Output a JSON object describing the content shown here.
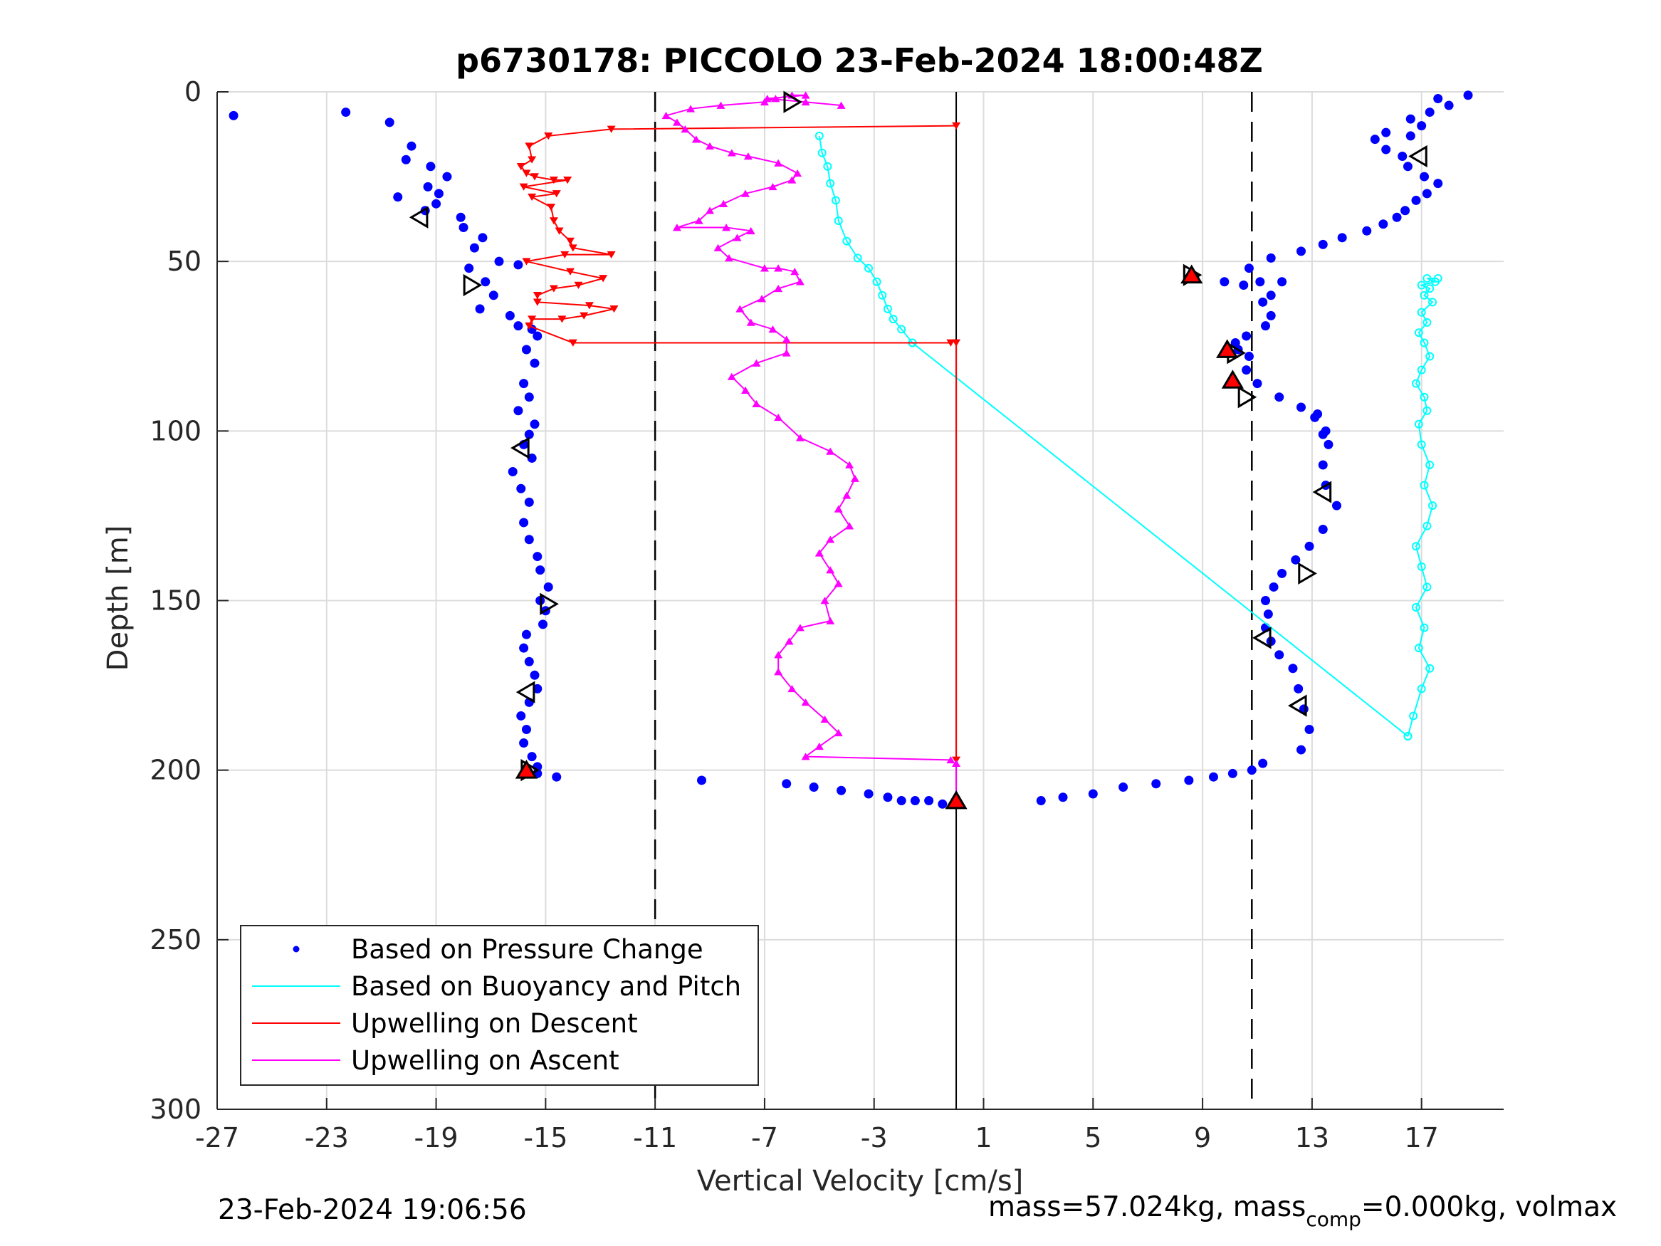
{
  "title": "p6730178: PICCOLO 23-Feb-2024 18:00:48Z",
  "footer": {
    "timestamp": "23-Feb-2024 19:06:56",
    "mass_text": "mass=57.024kg, mass",
    "mass_sub": "comp",
    "mass_tail": "=0.000kg, volmax"
  },
  "colors": {
    "pressure": "#0000ff",
    "buoyancy": "#00ffff",
    "descent": "#ff0000",
    "ascent": "#ff00ff",
    "dashed": "#000000"
  },
  "chart_data": {
    "type": "scatter",
    "title": "p6730178: PICCOLO 23-Feb-2024 18:00:48Z",
    "xlabel": "Vertical Velocity [cm/s]",
    "ylabel": "Depth [m]",
    "xlim": [
      -27,
      20
    ],
    "ylim": [
      0,
      300
    ],
    "y_reversed": true,
    "grid": true,
    "xticks": [
      -27,
      -23,
      -19,
      -15,
      -11,
      -7,
      -3,
      1,
      5,
      9,
      13,
      17
    ],
    "xtick_labels": [
      "-27",
      "-23",
      "-19",
      "-15",
      "-11",
      "-7",
      "-3",
      "1",
      "5",
      "9",
      "13",
      "17"
    ],
    "yticks": [
      0,
      50,
      100,
      150,
      200,
      250,
      300
    ],
    "ytick_labels": [
      "0",
      "50",
      "100",
      "150",
      "200",
      "250",
      "300"
    ],
    "legend_position": "bottom-left",
    "legend": [
      "Based on Pressure Change",
      "Based on Buoyancy and Pitch",
      "Upwelling on Descent",
      "Upwelling on Ascent"
    ],
    "reference_lines": {
      "dashed_x": [
        -11.0,
        10.8
      ],
      "solid_x": 0.0
    },
    "series": [
      {
        "name": "Based on Pressure Change",
        "style": "dots",
        "segments": [
          {
            "x": [
              -26.4,
              -22.3,
              -20.7,
              -19.9,
              -20.1,
              -19.2,
              -18.6,
              -19.3,
              -18.9,
              -19.0,
              -20.4,
              -19.4,
              -18.1,
              -18.0,
              -17.3,
              -17.6,
              -16.7,
              -16.0,
              -17.8,
              -17.2,
              -16.9,
              -17.4,
              -16.3,
              -16.0,
              -15.5,
              -15.3,
              -15.7,
              -15.4,
              -15.8,
              -15.6,
              -16.0,
              -15.4,
              -15.6,
              -15.8,
              -15.5,
              -16.2,
              -15.9,
              -15.6,
              -15.8,
              -15.6,
              -15.3,
              -15.2,
              -14.9,
              -15.2,
              -15.0,
              -15.1,
              -15.7,
              -15.8,
              -15.6,
              -15.4,
              -15.3,
              -15.6,
              -15.9,
              -15.7,
              -15.8,
              -15.5,
              -15.3,
              -15.3,
              -14.6
            ],
            "y": [
              7,
              6,
              9,
              16,
              20,
              22,
              25,
              28,
              30,
              33,
              31,
              35,
              37,
              40,
              43,
              46,
              50,
              51,
              52,
              56,
              60,
              64,
              66,
              69,
              70,
              72,
              76,
              80,
              86,
              90,
              94,
              98,
              101,
              104,
              108,
              112,
              117,
              121,
              127,
              132,
              137,
              141,
              146,
              150,
              153,
              157,
              160,
              164,
              168,
              172,
              176,
              180,
              184,
              188,
              192,
              196,
              199,
              201,
              202
            ]
          },
          {
            "x": [
              -9.3,
              -6.2,
              -5.2,
              -4.2,
              -3.2,
              -2.5,
              -2.0,
              -1.5,
              -1.0,
              -0.5,
              0.0
            ],
            "y": [
              203,
              204,
              205,
              206,
              207,
              208,
              209,
              209,
              209,
              210,
              210
            ]
          },
          {
            "x": [
              3.1,
              3.9,
              5.0,
              6.1,
              7.3,
              8.5,
              9.4,
              10.1,
              10.8,
              11.2
            ],
            "y": [
              209,
              208,
              207,
              205,
              204,
              203,
              202,
              201,
              200,
              198
            ]
          },
          {
            "x": [
              12.6,
              12.9,
              12.7,
              12.5,
              12.3,
              11.8,
              11.5,
              11.3,
              11.4,
              11.3,
              11.6,
              11.9,
              12.4,
              12.9,
              13.4,
              13.9,
              13.5,
              13.4,
              13.6,
              13.5,
              13.1,
              13.4,
              13.2,
              12.6,
              11.8,
              11.0,
              10.6,
              10.7,
              10.3,
              10.2,
              10.6,
              11.3,
              11.5,
              11.2,
              11.5,
              11.9,
              11.1,
              10.5,
              9.8,
              8.6,
              10.7,
              11.5,
              12.6,
              13.4,
              14.1,
              15.0,
              15.6,
              16.1,
              16.4,
              16.8,
              17.2,
              17.6,
              17.1,
              16.5,
              16.3,
              15.7,
              15.3,
              15.7,
              16.6,
              17.0,
              16.6,
              17.3,
              18.0,
              17.6,
              18.7
            ],
            "y": [
              194,
              188,
              182,
              176,
              170,
              166,
              162,
              158,
              154,
              150,
              146,
              142,
              138,
              134,
              129,
              122,
              116,
              110,
              104,
              100,
              96,
              101,
              95,
              93,
              90,
              86,
              82,
              78,
              76,
              74,
              72,
              69,
              66,
              62,
              60,
              56,
              56,
              57,
              56,
              55,
              52,
              49,
              47,
              45,
              43,
              41,
              39,
              37,
              35,
              32,
              30,
              27,
              25,
              22,
              19,
              17,
              14,
              12,
              13,
              10,
              8,
              6,
              4,
              2,
              1
            ]
          }
        ]
      },
      {
        "name": "Based on Buoyancy and Pitch",
        "style": "line-dots",
        "segments": [
          {
            "x": [
              -5.0,
              -4.9,
              -4.7,
              -4.6,
              -4.4,
              -4.3,
              -4.0,
              -3.6,
              -3.2,
              -2.9,
              -2.7,
              -2.5,
              -2.3,
              -2.0,
              -1.6
            ],
            "y": [
              13,
              18,
              22,
              27,
              32,
              38,
              44,
              49,
              52,
              56,
              60,
              64,
              67,
              70,
              74
            ]
          },
          {
            "x": [
              -1.6,
              16.5
            ],
            "y": [
              74,
              190
            ]
          },
          {
            "x": [
              16.5,
              16.7,
              17.0,
              17.3,
              16.9,
              17.1,
              16.8,
              17.2,
              17.0,
              16.8,
              17.2,
              17.4,
              17.1,
              17.3,
              17.0,
              16.9,
              17.2,
              17.1,
              16.8,
              17.0,
              17.3,
              17.1,
              16.9,
              17.2,
              17.0,
              17.4,
              17.1,
              17.3,
              17.0,
              17.5,
              17.2,
              17.6
            ],
            "y": [
              190,
              184,
              176,
              170,
              164,
              158,
              152,
              146,
              140,
              134,
              128,
              122,
              116,
              110,
              104,
              98,
              94,
              90,
              86,
              82,
              78,
              74,
              71,
              68,
              65,
              62,
              60,
              58,
              57,
              56,
              55,
              55
            ]
          }
        ]
      },
      {
        "name": "Upwelling on Descent",
        "style": "line-down-triangles",
        "segments": [
          {
            "x": [
              0.0,
              -12.6,
              -14.9,
              -15.6,
              -15.5,
              -15.9,
              -15.7,
              -15.4,
              -14.7,
              -14.2,
              -15.8,
              -14.6,
              -15.5,
              -14.8,
              -14.7,
              -14.5,
              -14.1,
              -14.0,
              -12.6,
              -14.3,
              -15.7,
              -14.1,
              -12.9,
              -13.8,
              -14.7,
              -15.3,
              -15.3,
              -13.4,
              -12.5,
              -13.6,
              -14.4,
              -15.5,
              -15.6,
              -14.0,
              -0.2
            ],
            "y": [
              10,
              11,
              13,
              16,
              20,
              22,
              24,
              25,
              26,
              26,
              28,
              30,
              31,
              34,
              38,
              41,
              44,
              46,
              48,
              48,
              50,
              53,
              55,
              57,
              58,
              60,
              62,
              63,
              64,
              66,
              67,
              67,
              69,
              74,
              74
            ]
          },
          {
            "x": [
              0.0,
              0.0
            ],
            "y": [
              74,
              197
            ]
          }
        ]
      },
      {
        "name": "Upwelling on Ascent",
        "style": "line-up-triangles",
        "segments": [
          {
            "x": [
              -0.2,
              -5.5,
              -5.0,
              -4.3,
              -4.8,
              -5.5,
              -6.0,
              -6.5,
              -6.5,
              -6.1,
              -5.7,
              -4.6,
              -4.8,
              -4.3,
              -4.6,
              -5.0,
              -4.6,
              -3.9,
              -4.3,
              -4.0,
              -3.7,
              -3.9,
              -4.6,
              -5.7,
              -6.5,
              -7.3,
              -7.7,
              -8.2,
              -7.3,
              -6.2,
              -6.2,
              -6.7,
              -7.5,
              -7.9,
              -7.1,
              -6.5,
              -5.7,
              -5.9,
              -6.5,
              -7.0,
              -8.3,
              -8.7,
              -8.0,
              -7.5,
              -8.4,
              -10.2,
              -9.4,
              -9.0,
              -8.5,
              -7.7,
              -6.7,
              -6.0,
              -5.8,
              -6.5,
              -7.6,
              -8.2,
              -9.0,
              -9.5,
              -9.9,
              -10.2,
              -10.6,
              -9.7,
              -8.6,
              -7.0,
              -6.6,
              -6.0,
              -5.5,
              -6.9,
              -5.5,
              -4.2
            ],
            "y": [
              197,
              196,
              193,
              189,
              185,
              180,
              176,
              171,
              166,
              162,
              158,
              156,
              150,
              145,
              141,
              136,
              132,
              128,
              123,
              119,
              114,
              110,
              106,
              102,
              96,
              92,
              88,
              84,
              80,
              77,
              73,
              70,
              68,
              64,
              61,
              58,
              56,
              53,
              52,
              52,
              49,
              46,
              43,
              41,
              40,
              40,
              38,
              35,
              33,
              30,
              28,
              26,
              24,
              21,
              19,
              18,
              16,
              14,
              11,
              9,
              7,
              5,
              4,
              3,
              2,
              1,
              1,
              2,
              3,
              4
            ]
          },
          {
            "x": [
              0.0,
              0.0
            ],
            "y": [
              198,
              209
            ]
          }
        ]
      }
    ],
    "markers": [
      {
        "shape": "tri-right",
        "x": -6.0,
        "y": 3,
        "filled": false
      },
      {
        "shape": "tri-left",
        "x": -19.6,
        "y": 37,
        "filled": false
      },
      {
        "shape": "tri-right",
        "x": -17.7,
        "y": 57,
        "filled": false
      },
      {
        "shape": "tri-left",
        "x": -15.9,
        "y": 105,
        "filled": false
      },
      {
        "shape": "tri-right",
        "x": -14.9,
        "y": 151,
        "filled": false
      },
      {
        "shape": "tri-left",
        "x": -15.7,
        "y": 177,
        "filled": false
      },
      {
        "shape": "tri-right",
        "x": -15.6,
        "y": 200,
        "filled": false
      },
      {
        "shape": "tri-up",
        "x": -15.7,
        "y": 200,
        "filled": true
      },
      {
        "shape": "tri-up",
        "x": 0.0,
        "y": 209,
        "filled": true
      },
      {
        "shape": "tri-right",
        "x": 8.6,
        "y": 54,
        "filled": false
      },
      {
        "shape": "tri-up",
        "x": 8.6,
        "y": 54,
        "filled": true
      },
      {
        "shape": "tri-right",
        "x": 10.2,
        "y": 77,
        "filled": false
      },
      {
        "shape": "tri-up",
        "x": 9.9,
        "y": 76,
        "filled": true
      },
      {
        "shape": "tri-up",
        "x": 10.1,
        "y": 85,
        "filled": true
      },
      {
        "shape": "tri-right",
        "x": 10.6,
        "y": 90,
        "filled": false
      },
      {
        "shape": "tri-left",
        "x": 13.4,
        "y": 118,
        "filled": false
      },
      {
        "shape": "tri-right",
        "x": 12.8,
        "y": 142,
        "filled": false
      },
      {
        "shape": "tri-left",
        "x": 11.2,
        "y": 161,
        "filled": false
      },
      {
        "shape": "tri-left",
        "x": 12.5,
        "y": 181,
        "filled": false
      },
      {
        "shape": "tri-left",
        "x": 16.9,
        "y": 19,
        "filled": false
      }
    ]
  }
}
